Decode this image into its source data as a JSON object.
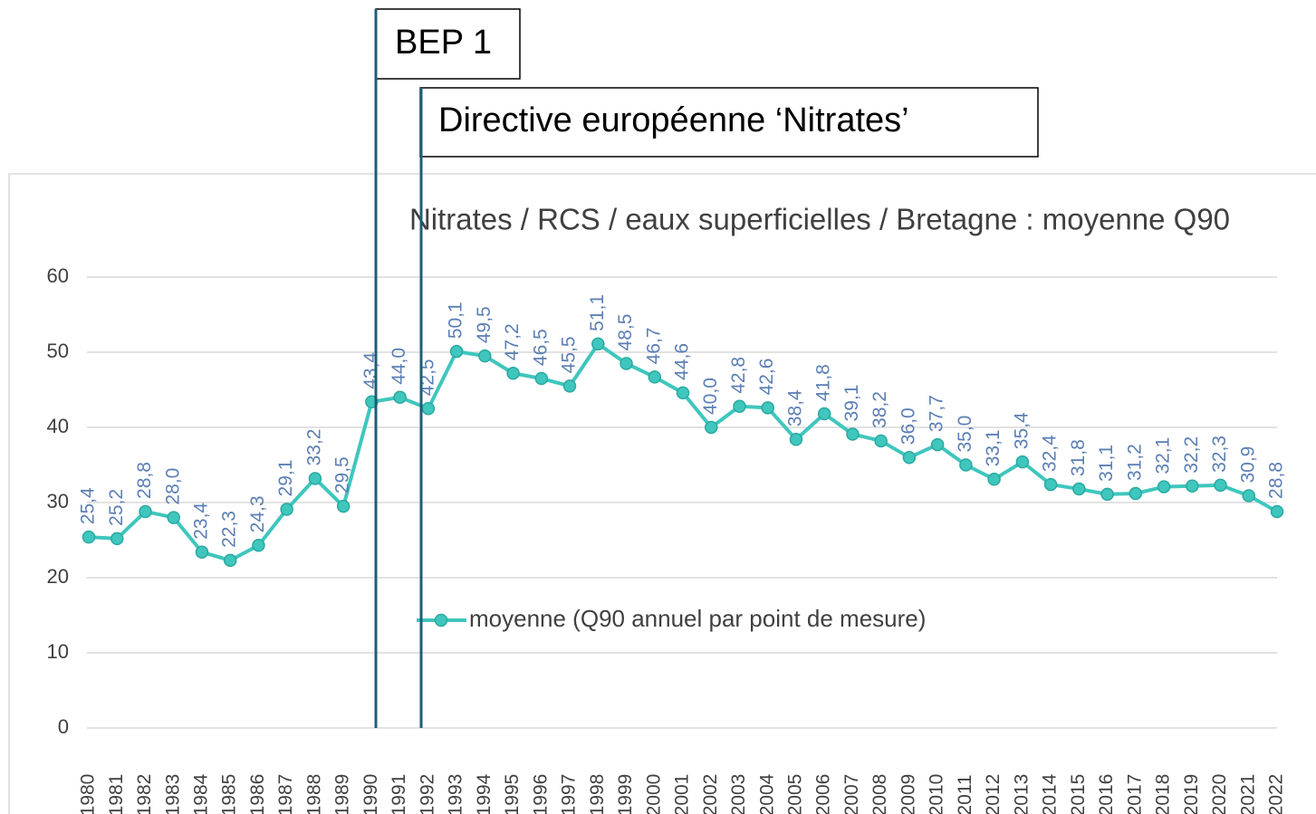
{
  "chart_data": {
    "type": "line",
    "title": "Nitrates / RCS / eaux superficielles / Bretagne : moyenne Q90",
    "annotations": [
      "BEP 1",
      "Directive européenne ‘Nitrates’"
    ],
    "categories": [
      "1980",
      "1981",
      "1982",
      "1983",
      "1984",
      "1985",
      "1986",
      "1987",
      "1988",
      "1989",
      "1990",
      "1991",
      "1992",
      "1993",
      "1994",
      "1995",
      "1996",
      "1997",
      "1998",
      "1999",
      "2000",
      "2001",
      "2002",
      "2003",
      "2004",
      "2005",
      "2006",
      "2007",
      "2008",
      "2009",
      "2010",
      "2011",
      "2012",
      "2013",
      "2014",
      "2015",
      "2016",
      "2017",
      "2018",
      "2019",
      "2020",
      "2021",
      "2022"
    ],
    "series": [
      {
        "name": "moyenne (Q90 annuel par point de mesure)",
        "color": "#3fc6bd",
        "values": [
          25.4,
          25.2,
          28.8,
          28.0,
          23.4,
          22.3,
          24.3,
          29.1,
          33.2,
          29.5,
          43.4,
          44.0,
          42.5,
          50.1,
          49.5,
          47.2,
          46.5,
          45.5,
          51.1,
          48.5,
          46.7,
          44.6,
          40.0,
          42.8,
          42.6,
          38.4,
          41.8,
          39.1,
          38.2,
          36.0,
          37.7,
          35.0,
          33.1,
          35.4,
          32.4,
          31.8,
          31.1,
          31.2,
          32.1,
          32.2,
          32.3,
          30.9,
          28.8
        ],
        "value_labels": [
          "25,4",
          "25,2",
          "28,8",
          "28,0",
          "23,4",
          "22,3",
          "24,3",
          "29,1",
          "33,2",
          "29,5",
          "43,4",
          "44,0",
          "42,5",
          "50,1",
          "49,5",
          "47,2",
          "46,5",
          "45,5",
          "51,1",
          "48,5",
          "46,7",
          "44,6",
          "40,0",
          "42,8",
          "42,6",
          "38,4",
          "41,8",
          "39,1",
          "38,2",
          "36,0",
          "37,7",
          "35,0",
          "33,1",
          "35,4",
          "32,4",
          "31,8",
          "31,1",
          "31,2",
          "32,1",
          "32,2",
          "32,3",
          "30,9",
          "28,8"
        ]
      }
    ],
    "ylim": [
      0,
      60
    ],
    "yticks": [
      0,
      10,
      20,
      30,
      40,
      50,
      60
    ],
    "grid": true,
    "label_color": "#5b7fb4"
  }
}
